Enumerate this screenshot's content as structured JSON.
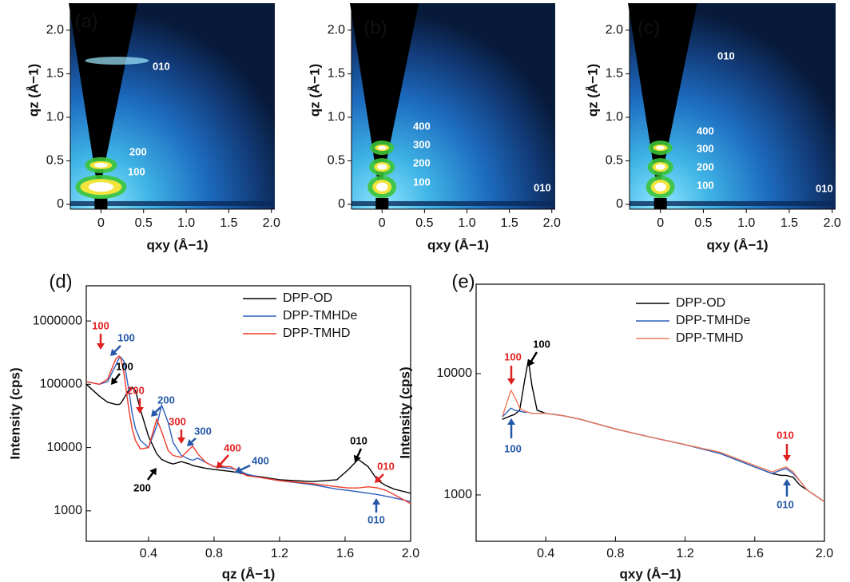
{
  "chart_data": [
    {
      "type": "heatmap",
      "panel": "(a)",
      "xlabel": "qxy (Å−1)",
      "ylabel": "qz (Å−1)",
      "xlim": [
        -0.36,
        2.04
      ],
      "ylim": [
        -0.055,
        2.31
      ],
      "xticks": [
        0,
        0.5,
        {
          "value": 1,
          "label": "1.0"
        },
        1.5,
        {
          "value": 2,
          "label": "2.0"
        }
      ],
      "yticks": [
        0,
        0.5,
        {
          "value": 1,
          "label": "1.0"
        },
        1.5,
        {
          "value": 2,
          "label": "2.0"
        }
      ],
      "labels": [
        "010",
        "200",
        "100"
      ]
    },
    {
      "type": "heatmap",
      "panel": "(b)",
      "xlabel": "qxy (Å−1)",
      "ylabel": "qz (Å−1)",
      "xlim": [
        -0.36,
        2.04
      ],
      "ylim": [
        -0.055,
        2.31
      ],
      "xticks": [
        0,
        0.5,
        {
          "value": 1,
          "label": "1.0"
        },
        1.5,
        {
          "value": 2,
          "label": "2.0"
        }
      ],
      "yticks": [
        0,
        0.5,
        {
          "value": 1,
          "label": "1.0"
        },
        1.5,
        {
          "value": 2,
          "label": "2.0"
        }
      ],
      "labels": [
        "400",
        "300",
        "200",
        "100",
        "010"
      ]
    },
    {
      "type": "heatmap",
      "panel": "(c)",
      "xlabel": "qxy (Å−1)",
      "ylabel": "qz (Å−1)",
      "xlim": [
        -0.36,
        2.04
      ],
      "ylim": [
        -0.055,
        2.31
      ],
      "xticks": [
        0,
        0.5,
        {
          "value": 1,
          "label": "1.0"
        },
        1.5,
        {
          "value": 2,
          "label": "2.0"
        }
      ],
      "yticks": [
        0,
        0.5,
        {
          "value": 1,
          "label": "1.0"
        },
        1.5,
        {
          "value": 2,
          "label": "2.0"
        }
      ],
      "labels": [
        "010",
        "400",
        "300",
        "200",
        "100",
        "010"
      ]
    },
    {
      "type": "line",
      "panel": "(d)",
      "xlabel": "qz (Å−1)",
      "ylabel": "Intensity (cps)",
      "yscale": "log",
      "legend": "upper right",
      "xlim": [
        0.02,
        2.0
      ],
      "ylim": [
        330,
        3600000
      ],
      "xticks": [
        0.4,
        0.8,
        1.2,
        1.6,
        {
          "value": 2,
          "label": "2.0"
        }
      ],
      "yticks": [
        1000,
        10000,
        100000,
        1000000
      ],
      "x": [
        0.02,
        0.1,
        0.15,
        0.2,
        0.22,
        0.23,
        0.25,
        0.28,
        0.3,
        0.32,
        0.35,
        0.4,
        0.45,
        0.48,
        0.52,
        0.55,
        0.6,
        0.65,
        0.67,
        0.7,
        0.75,
        0.8,
        0.9,
        0.95,
        1.0,
        1.1,
        1.2,
        1.4,
        1.55,
        1.62,
        1.68,
        1.74,
        1.8,
        1.85,
        1.9,
        2.0
      ],
      "series": [
        {
          "name": "DPP-OD",
          "color": "#000000",
          "values": [
            100000,
            65000,
            52000,
            48000,
            48000,
            50000,
            60000,
            82000,
            90000,
            80000,
            40000,
            15000,
            8000,
            6500,
            5800,
            5500,
            6000,
            5500,
            5200,
            5000,
            4700,
            4500,
            4200,
            4000,
            3700,
            3400,
            3100,
            2900,
            3100,
            4500,
            6500,
            5000,
            3000,
            2500,
            2200,
            1900
          ]
        },
        {
          "name": "DPP-TMHDe",
          "color": "#2b5fbf",
          "values": [
            110000,
            100000,
            110000,
            200000,
            260000,
            270000,
            230000,
            80000,
            35000,
            20000,
            13000,
            10000,
            22000,
            47000,
            25000,
            12000,
            7500,
            6500,
            6300,
            6800,
            5800,
            5000,
            4700,
            4400,
            3800,
            3300,
            3000,
            2600,
            2200,
            2100,
            2000,
            1900,
            1800,
            1700,
            1600,
            1400
          ]
        },
        {
          "name": "DPP-TMHD",
          "color": "#ee3a2a",
          "values": [
            110000,
            100000,
            120000,
            250000,
            280000,
            260000,
            150000,
            40000,
            20000,
            13000,
            9500,
            10000,
            28000,
            18000,
            9000,
            7500,
            7000,
            9500,
            10500,
            8000,
            5800,
            5000,
            5000,
            4200,
            3600,
            3300,
            3000,
            2700,
            2400,
            2300,
            2300,
            2400,
            2300,
            2100,
            1800,
            1300
          ]
        }
      ],
      "annotations": [
        {
          "text": "100",
          "color": "#e02020"
        },
        {
          "text": "100",
          "color": "#2457a7"
        },
        {
          "text": "100",
          "color": "#000000"
        },
        {
          "text": "200",
          "color": "#e02020"
        },
        {
          "text": "200",
          "color": "#2457a7"
        },
        {
          "text": "200",
          "color": "#000000"
        },
        {
          "text": "300",
          "color": "#e02020"
        },
        {
          "text": "300",
          "color": "#2457a7"
        },
        {
          "text": "400",
          "color": "#e02020"
        },
        {
          "text": "400",
          "color": "#2457a7"
        },
        {
          "text": "010",
          "color": "#000000"
        },
        {
          "text": "010",
          "color": "#e02020"
        },
        {
          "text": "010",
          "color": "#2457a7"
        }
      ]
    },
    {
      "type": "line",
      "panel": "(e)",
      "xlabel": "qxy (Å−1)",
      "ylabel": "Intensity (cps)",
      "yscale": "log",
      "legend": "upper right",
      "xlim": [
        0.0,
        2.0
      ],
      "ylim": [
        415,
        54600
      ],
      "xticks": [
        0.4,
        0.8,
        1.2,
        1.6,
        {
          "value": 2,
          "label": "2.0"
        }
      ],
      "yticks": [
        1000,
        10000
      ],
      "x": [
        0.15,
        0.2,
        0.22,
        0.25,
        0.28,
        0.3,
        0.32,
        0.35,
        0.4,
        0.5,
        0.6,
        0.8,
        1.0,
        1.2,
        1.4,
        1.6,
        1.7,
        1.75,
        1.78,
        1.82,
        1.86,
        1.9,
        2.0
      ],
      "series": [
        {
          "name": "DPP-OD",
          "color": "#000000",
          "values": [
            4200,
            4500,
            4600,
            5000,
            9000,
            13000,
            8000,
            5000,
            4700,
            4500,
            4200,
            3500,
            3000,
            2600,
            2200,
            1700,
            1500,
            1450,
            1450,
            1400,
            1200,
            1100,
            880
          ]
        },
        {
          "name": "DPP-TMHDe",
          "color": "#2b5fbf",
          "values": [
            4400,
            5200,
            5000,
            4900,
            4800,
            4800,
            4700,
            4700,
            4700,
            4500,
            4200,
            3500,
            3000,
            2600,
            2200,
            1700,
            1500,
            1600,
            1650,
            1500,
            1300,
            1100,
            880
          ]
        },
        {
          "name": "DPP-TMHD",
          "color": "#f07a5a",
          "values": [
            4400,
            7300,
            6500,
            5200,
            4900,
            4800,
            4700,
            4700,
            4700,
            4500,
            4200,
            3500,
            3000,
            2600,
            2250,
            1750,
            1550,
            1650,
            1700,
            1550,
            1300,
            1100,
            880
          ]
        }
      ],
      "annotations": [
        {
          "text": "100",
          "color": "#000000"
        },
        {
          "text": "100",
          "color": "#e02020"
        },
        {
          "text": "100",
          "color": "#2457a7"
        },
        {
          "text": "010",
          "color": "#e02020"
        },
        {
          "text": "010",
          "color": "#2457a7"
        }
      ]
    }
  ]
}
